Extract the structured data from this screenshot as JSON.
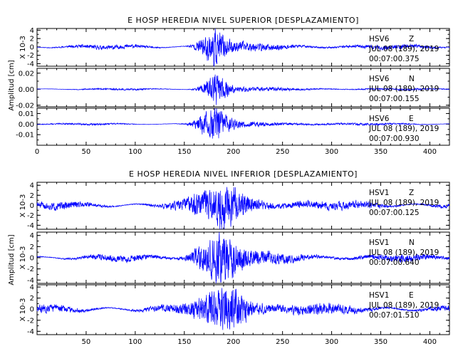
{
  "chart_data": [
    {
      "type": "line",
      "title": "E HOSP HEREDIA NIVEL SUPERIOR [DESPLAZAMIENTO]",
      "ylabel": "Amplitud [cm]",
      "xlim": [
        0,
        420
      ],
      "xticks": [
        0,
        50,
        100,
        150,
        200,
        250,
        300,
        350,
        400
      ],
      "show_xtick_labels": true,
      "grid": false,
      "line_color": "#0000ff",
      "panels": [
        {
          "station": "HSV6",
          "component": "Z",
          "date": "JUL 08 (189), 2019",
          "time": "00:07:00.375",
          "scale_label": "X 10-3",
          "ylim": [
            -4.6,
            4.4
          ],
          "yticks": [
            -4,
            -2,
            0,
            2,
            4
          ],
          "yticklabels": [
            "-4",
            "-2",
            "0",
            "2",
            "4"
          ],
          "base_amplitude": 0.7,
          "peak_amplitude": 4.2,
          "burst_center": 178,
          "burst_width": 14,
          "coda": 0.9,
          "seed": 11
        },
        {
          "station": "HSV6",
          "component": "N",
          "date": "JUL 08 (189), 2019",
          "time": "00:07:00.155",
          "scale_label": "",
          "ylim": [
            -0.022,
            0.026
          ],
          "yticks": [
            -0.02,
            0,
            0.02
          ],
          "yticklabels": [
            "-0.02",
            "0.00",
            "0.02"
          ],
          "base_amplitude": 0.0015,
          "peak_amplitude": 0.019,
          "burst_center": 181,
          "burst_width": 13,
          "coda": 0.7,
          "seed": 23
        },
        {
          "station": "HSV6",
          "component": "E",
          "date": "JUL 08 (189), 2019",
          "time": "00:07:00.930",
          "scale_label": "",
          "ylim": [
            -0.02,
            0.015
          ],
          "yticks": [
            -0.01,
            0,
            0.01
          ],
          "yticklabels": [
            "-0.01",
            "0.00",
            "0.01"
          ],
          "base_amplitude": 0.0012,
          "peak_amplitude": 0.017,
          "burst_center": 178,
          "burst_width": 15,
          "coda": 0.9,
          "seed": 37
        }
      ]
    },
    {
      "type": "line",
      "title": "E HOSP HEREDIA NIVEL INFERIOR [DESPLAZAMIENTO]",
      "ylabel": "Amplitud [cm]",
      "xlim": [
        0,
        420
      ],
      "xticks": [
        50,
        100,
        150,
        200,
        250,
        300,
        350,
        400
      ],
      "show_xtick_labels": true,
      "grid": false,
      "line_color": "#0000ff",
      "panels": [
        {
          "station": "HSV1",
          "component": "Z",
          "date": "JUL 08 (189), 2019",
          "time": "00:07:00.125",
          "scale_label": "X 10-3",
          "ylim": [
            -4.8,
            4.6
          ],
          "yticks": [
            -4,
            -2,
            0,
            2,
            4
          ],
          "yticklabels": [
            "-4",
            "-2",
            "0",
            "2",
            "4"
          ],
          "base_amplitude": 1.0,
          "peak_amplitude": 3.8,
          "burst_center": 185,
          "burst_width": 28,
          "coda": 1.3,
          "seed": 51
        },
        {
          "station": "HSV1",
          "component": "N",
          "date": "JUL 08 (189), 2019",
          "time": "00:07:00.640",
          "scale_label": "X 10-3",
          "ylim": [
            -4.6,
            4.6
          ],
          "yticks": [
            -4,
            -2,
            0,
            2,
            4
          ],
          "yticklabels": [
            "-4",
            "-2",
            "0",
            "2",
            "4"
          ],
          "base_amplitude": 0.8,
          "peak_amplitude": 4.3,
          "burst_center": 182,
          "burst_width": 22,
          "coda": 1.2,
          "seed": 67
        },
        {
          "station": "HSV1",
          "component": "E",
          "date": "JUL 08 (189), 2019",
          "time": "00:07:01.510",
          "scale_label": "X 10-3",
          "ylim": [
            -4.6,
            4.4
          ],
          "yticks": [
            -4,
            -2,
            0,
            2,
            4
          ],
          "yticklabels": [
            "-4",
            "-2",
            "0",
            "2",
            "4"
          ],
          "base_amplitude": 1.0,
          "peak_amplitude": 3.9,
          "burst_center": 188,
          "burst_width": 26,
          "coda": 1.3,
          "seed": 83
        }
      ]
    }
  ]
}
